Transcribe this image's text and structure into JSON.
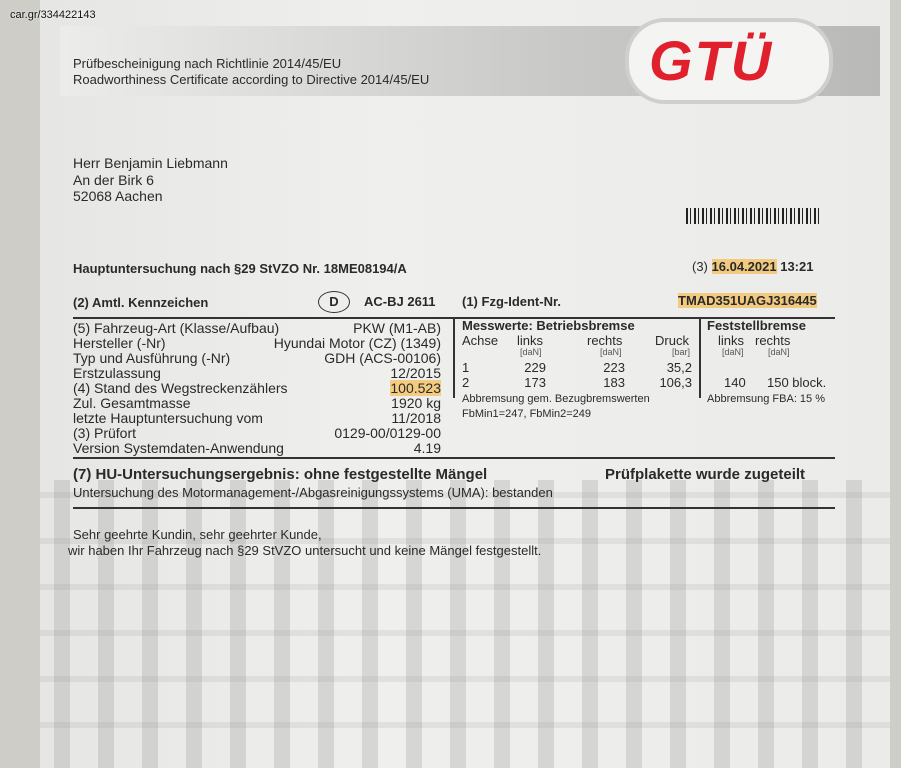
{
  "watermark": "car.gr/334422143",
  "header": {
    "line1": "Prüfbescheinigung nach Richtlinie 2014/45/EU",
    "line2": "Roadworthiness Certificate according to Directive 2014/45/EU",
    "logo": "GTÜ",
    "brand_color": "#e0202c"
  },
  "address": [
    "Herr Benjamin Liebmann",
    "An der Birk 6",
    "52068 Aachen"
  ],
  "inspection": {
    "title": "Hauptuntersuchung nach §29 StVZO Nr. 18ME08194/A",
    "date_prefix": "(3)",
    "date": "16.04.2021",
    "time": "13:21"
  },
  "plate": {
    "label": "(2) Amtl. Kennzeichen",
    "country": "D",
    "value": "AC-BJ 2611"
  },
  "vin": {
    "label": "(1) Fzg-Ident-Nr.",
    "value": "TMAD351UAGJ316445"
  },
  "vehicle": [
    {
      "label": "(5) Fahrzeug-Art (Klasse/Aufbau)",
      "value": "PKW (M1-AB)"
    },
    {
      "label": "Hersteller (-Nr)",
      "value": "Hyundai Motor (CZ) (1349)"
    },
    {
      "label": "Typ und Ausführung (-Nr)",
      "value": "GDH (ACS-00106)"
    },
    {
      "label": "Erstzulassung",
      "value": "12/2015"
    },
    {
      "label": "(4) Stand des Wegstreckenzählers",
      "value": "100.523"
    },
    {
      "label": "Zul. Gesamtmasse",
      "value": "1920 kg"
    },
    {
      "label": "letzte Hauptuntersuchung vom",
      "value": "11/2018"
    },
    {
      "label": "(3) Prüfort",
      "value": "0129-00/0129-00"
    },
    {
      "label": "Version Systemdaten-Anwendung",
      "value": "4.19"
    }
  ],
  "brake": {
    "title": "Messwerte: Betriebsbremse",
    "headers": [
      "Achse",
      "links",
      "rechts",
      "Druck"
    ],
    "units": [
      "[daN]",
      "[daN]",
      "[bar]"
    ],
    "rows": [
      [
        "1",
        "229",
        "223",
        "35,2"
      ],
      [
        "2",
        "173",
        "183",
        "106,3"
      ]
    ],
    "note1": "Abbremsung gem. Bezugbremswerten",
    "note2": "FbMin1=247, FbMin2=249"
  },
  "parking": {
    "title": "Feststellbremse",
    "headers": [
      "links",
      "rechts"
    ],
    "units": [
      "[daN]",
      "[daN]"
    ],
    "values": [
      "140",
      "150 block."
    ],
    "note": "Abbremsung FBA: 15 %"
  },
  "result": {
    "title": "(7) HU-Untersuchungsergebnis: ohne festgestellte Mängel",
    "badge": "Prüfplakette wurde zugeteilt",
    "uma": "Untersuchung des Motormanagement-/Abgasreinigungssystems (UMA): bestanden"
  },
  "letter": [
    "Sehr geehrte Kundin, sehr geehrter Kunde,",
    "wir haben Ihr Fahrzeug nach §29 StVZO untersucht und keine Mängel festgestellt."
  ]
}
